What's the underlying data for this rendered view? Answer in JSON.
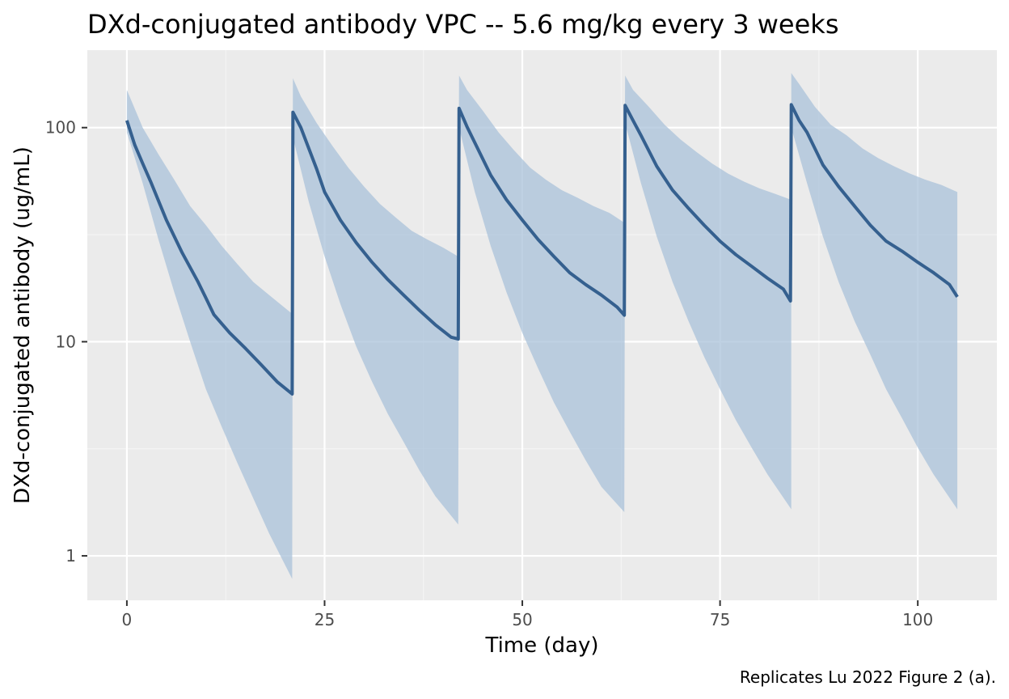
{
  "chart_data": {
    "type": "line",
    "title": "DXd-conjugated antibody VPC -- 5.6 mg/kg every 3 weeks",
    "xlabel": "Time (day)",
    "ylabel": "DXd-conjugated antibody (ug/mL)",
    "caption": "Replicates Lu 2022 Figure 2 (a).",
    "x_scale": "linear",
    "y_scale": "log10",
    "xlim": [
      -5,
      110
    ],
    "ylim": [
      0.62,
      230
    ],
    "x_ticks": [
      0,
      25,
      50,
      75,
      100
    ],
    "x_tick_labels": [
      "0",
      "25",
      "50",
      "75",
      "100"
    ],
    "y_ticks": [
      1,
      10,
      100
    ],
    "y_tick_labels": [
      "1",
      "10",
      "100"
    ],
    "grid": true,
    "legend": "none",
    "colors": {
      "panel_background": "#ebebeb",
      "grid_major": "#ffffff",
      "grid_minor": "#f5f5f5",
      "median_line": "#35608f",
      "interval_band": "#a9c1da"
    },
    "series": [
      {
        "kind": "median",
        "x": [
          0,
          1,
          2,
          3,
          5,
          7,
          9,
          10,
          11,
          13,
          15,
          17,
          19,
          20.9,
          21,
          22,
          23,
          24,
          25,
          27,
          29,
          31,
          33,
          35,
          37,
          39,
          41,
          41.9,
          42,
          43,
          44,
          46,
          48,
          50,
          52,
          54,
          56,
          58,
          60,
          62,
          62.9,
          63,
          64,
          65,
          67,
          69,
          71,
          73,
          75,
          77,
          79,
          81,
          83,
          83.9,
          84,
          85,
          86,
          88,
          90,
          92,
          94,
          96,
          98,
          100,
          102,
          104,
          105
        ],
        "y": [
          108,
          83,
          68,
          56,
          37,
          26,
          19,
          16,
          13.4,
          11,
          9.3,
          7.8,
          6.5,
          5.7,
          118,
          100,
          80,
          64,
          50,
          37,
          29,
          23.5,
          19.5,
          16.5,
          14,
          12,
          10.5,
          10.3,
          123,
          101,
          85,
          60,
          46,
          37,
          30,
          25,
          21,
          18.5,
          16.5,
          14.5,
          13.3,
          127,
          108,
          92,
          66,
          51,
          42,
          35,
          29.5,
          25.5,
          22.5,
          19.8,
          17.6,
          15.5,
          128,
          108,
          95,
          67,
          53,
          43,
          35,
          29.5,
          26.5,
          23.5,
          21,
          18.5,
          16.2
        ]
      },
      {
        "kind": "upper",
        "x": [
          0,
          2,
          4,
          6,
          8,
          10,
          12,
          14,
          16,
          18,
          20.9,
          21,
          22,
          24,
          26,
          28,
          30,
          32,
          34,
          36,
          38,
          40,
          41.9,
          42,
          43,
          45,
          47,
          49,
          51,
          53,
          55,
          57,
          59,
          61,
          62.9,
          63,
          64,
          66,
          68,
          70,
          72,
          74,
          76,
          78,
          80,
          82,
          84,
          84,
          85,
          87,
          89,
          91,
          93,
          95,
          97,
          99,
          101,
          103,
          105
        ],
        "y": [
          150,
          100,
          75,
          57,
          43,
          35,
          28,
          23,
          19,
          16.5,
          13.5,
          170,
          140,
          105,
          82,
          65,
          53,
          44,
          38,
          33,
          30,
          27.5,
          25,
          175,
          150,
          120,
          95,
          78,
          65,
          57,
          51,
          47,
          43,
          40,
          36,
          175,
          150,
          125,
          103,
          88,
          77,
          68,
          61,
          56,
          52,
          49,
          46,
          180,
          160,
          125,
          103,
          92,
          80,
          72,
          66,
          61,
          57,
          54,
          50
        ]
      },
      {
        "kind": "lower",
        "x": [
          0,
          2,
          4,
          6,
          8,
          10,
          12,
          14,
          16,
          18,
          20.9,
          21,
          23,
          25,
          27,
          29,
          31,
          33,
          35,
          37,
          39,
          41.9,
          42,
          44,
          46,
          48,
          50,
          52,
          54,
          56,
          58,
          60,
          62.9,
          63,
          65,
          67,
          69,
          71,
          73,
          75,
          77,
          79,
          81,
          84,
          84,
          86,
          88,
          90,
          92,
          94,
          96,
          98,
          100,
          102,
          105
        ],
        "y": [
          95,
          55,
          30,
          17,
          10,
          6,
          4,
          2.7,
          1.85,
          1.27,
          0.78,
          90,
          45,
          25,
          15,
          9.5,
          6.5,
          4.6,
          3.4,
          2.5,
          1.9,
          1.4,
          100,
          50,
          28,
          17,
          11,
          7.5,
          5.2,
          3.8,
          2.8,
          2.1,
          1.6,
          105,
          55,
          31,
          19,
          12.5,
          8.5,
          6,
          4.3,
          3.2,
          2.4,
          1.65,
          100,
          55,
          31,
          19,
          12.5,
          8.7,
          6,
          4.4,
          3.2,
          2.4,
          1.65
        ]
      }
    ]
  }
}
